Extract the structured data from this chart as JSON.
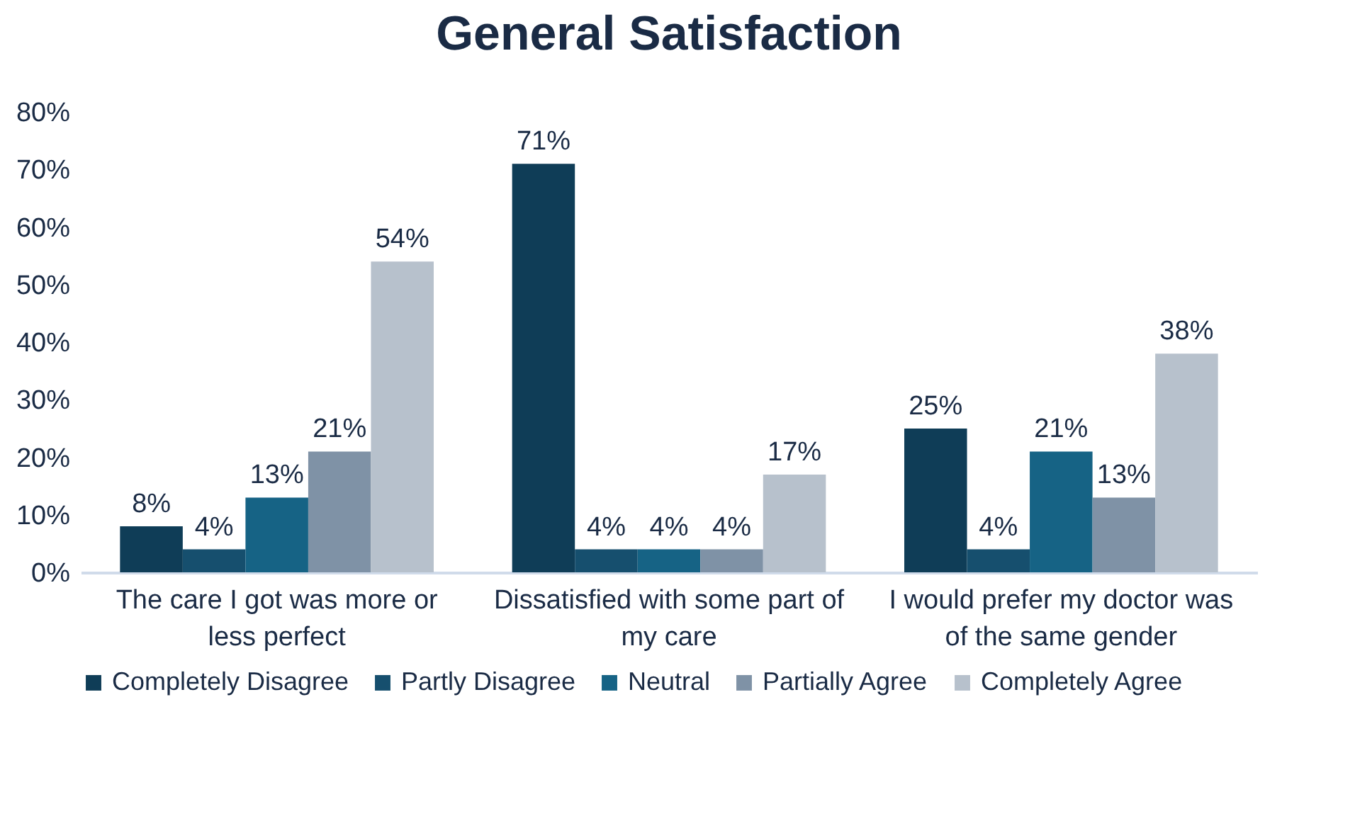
{
  "chart_data": {
    "type": "bar",
    "title": "General Satisfaction",
    "categories": [
      "The care I got was more or less perfect",
      "Dissatisfied with some part of my care",
      "I would prefer my doctor was of the same gender"
    ],
    "series": [
      {
        "name": "Completely Disagree",
        "color": "#0f3d57",
        "values": [
          8,
          71,
          25
        ],
        "value_labels": [
          "8%",
          "71%",
          "25%"
        ]
      },
      {
        "name": "Partly Disagree",
        "color": "#164f6e",
        "values": [
          4,
          4,
          4
        ],
        "value_labels": [
          "4%",
          "4%",
          "4%"
        ]
      },
      {
        "name": "Neutral",
        "color": "#166385",
        "values": [
          13,
          4,
          21
        ],
        "value_labels": [
          "13%",
          "4%",
          "21%"
        ]
      },
      {
        "name": "Partially Agree",
        "color": "#7f92a6",
        "values": [
          21,
          4,
          13
        ],
        "value_labels": [
          "21%",
          "4%",
          "13%"
        ]
      },
      {
        "name": "Completely Agree",
        "color": "#b7c1cc",
        "values": [
          54,
          17,
          38
        ],
        "value_labels": [
          "54%",
          "17%",
          "38%"
        ]
      }
    ],
    "ylim": [
      0,
      80
    ],
    "yticks": [
      {
        "value": 0,
        "label": "0%"
      },
      {
        "value": 10,
        "label": "10%"
      },
      {
        "value": 20,
        "label": "20%"
      },
      {
        "value": 30,
        "label": "30%"
      },
      {
        "value": 40,
        "label": "40%"
      },
      {
        "value": 50,
        "label": "50%"
      },
      {
        "value": 60,
        "label": "60%"
      },
      {
        "value": 70,
        "label": "70%"
      },
      {
        "value": 80,
        "label": "80%"
      }
    ],
    "grid": false,
    "legend": "bottom"
  }
}
